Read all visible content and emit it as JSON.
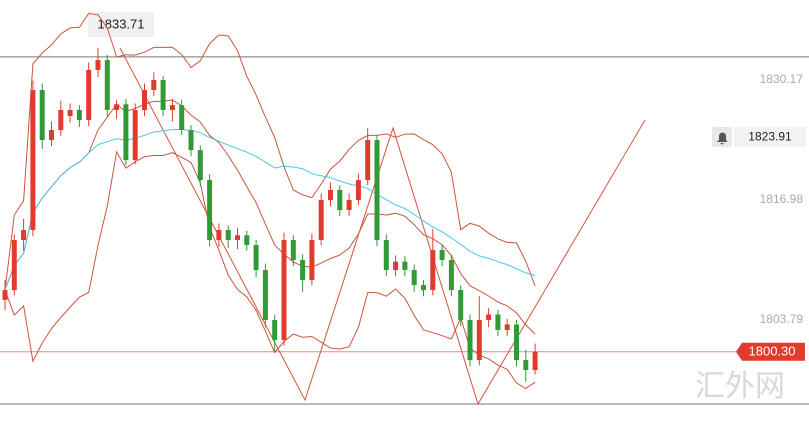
{
  "chart_data": {
    "type": "candlestick",
    "ohlc": [
      [
        1806.0,
        1808.2,
        1804.9,
        1807.08
      ],
      [
        1807.08,
        1813.2,
        1806.5,
        1812.58
      ],
      [
        1812.58,
        1814.9,
        1811.4,
        1813.68
      ],
      [
        1813.68,
        1830.1,
        1813.0,
        1829.07
      ],
      [
        1829.07,
        1829.8,
        1822.6,
        1823.57
      ],
      [
        1823.57,
        1825.6,
        1822.9,
        1824.67
      ],
      [
        1824.67,
        1827.9,
        1824.0,
        1826.87
      ],
      [
        1826.2,
        1827.6,
        1825.5,
        1826.87
      ],
      [
        1826.87,
        1827.4,
        1825.0,
        1825.77
      ],
      [
        1825.77,
        1832.1,
        1825.1,
        1831.27
      ],
      [
        1831.27,
        1833.71,
        1830.5,
        1832.36
      ],
      [
        1832.36,
        1832.9,
        1826.1,
        1826.87
      ],
      [
        1826.87,
        1828.0,
        1825.9,
        1827.5
      ],
      [
        1827.5,
        1828.1,
        1820.8,
        1821.37
      ],
      [
        1821.37,
        1827.6,
        1820.9,
        1826.87
      ],
      [
        1826.87,
        1829.8,
        1826.2,
        1829.07
      ],
      [
        1829.07,
        1831.0,
        1828.4,
        1830.17
      ],
      [
        1830.17,
        1830.6,
        1826.2,
        1826.87
      ],
      [
        1826.87,
        1828.1,
        1825.6,
        1827.4
      ],
      [
        1827.4,
        1828.0,
        1824.1,
        1824.67
      ],
      [
        1824.67,
        1825.2,
        1821.8,
        1822.47
      ],
      [
        1822.47,
        1823.0,
        1818.5,
        1819.17
      ],
      [
        1819.17,
        1819.8,
        1811.9,
        1812.58
      ],
      [
        1812.58,
        1814.4,
        1811.8,
        1813.68
      ],
      [
        1813.68,
        1814.2,
        1811.7,
        1812.58
      ],
      [
        1812.58,
        1813.9,
        1811.6,
        1813.1
      ],
      [
        1813.1,
        1813.6,
        1811.4,
        1812.03
      ],
      [
        1812.03,
        1812.6,
        1808.5,
        1809.28
      ],
      [
        1809.28,
        1810.0,
        1803.0,
        1803.79
      ],
      [
        1803.79,
        1804.4,
        1800.3,
        1801.59
      ],
      [
        1801.59,
        1813.4,
        1801.0,
        1812.58
      ],
      [
        1812.58,
        1813.1,
        1809.7,
        1810.38
      ],
      [
        1810.38,
        1811.0,
        1806.9,
        1808.18
      ],
      [
        1808.18,
        1813.3,
        1807.6,
        1812.58
      ],
      [
        1812.58,
        1817.7,
        1812.0,
        1816.98
      ],
      [
        1816.98,
        1818.9,
        1816.3,
        1818.08
      ],
      [
        1818.08,
        1818.6,
        1815.2,
        1815.88
      ],
      [
        1815.88,
        1817.7,
        1815.2,
        1816.98
      ],
      [
        1816.98,
        1819.9,
        1816.4,
        1819.17
      ],
      [
        1819.17,
        1824.9,
        1818.6,
        1823.57
      ],
      [
        1823.57,
        1824.1,
        1811.9,
        1812.58
      ],
      [
        1812.58,
        1813.2,
        1808.6,
        1809.28
      ],
      [
        1809.28,
        1810.9,
        1808.6,
        1810.2
      ],
      [
        1810.2,
        1810.8,
        1808.6,
        1809.28
      ],
      [
        1809.28,
        1809.9,
        1806.9,
        1807.63
      ],
      [
        1807.63,
        1808.2,
        1806.4,
        1807.08
      ],
      [
        1807.08,
        1813.8,
        1806.5,
        1811.48
      ],
      [
        1811.48,
        1812.1,
        1809.7,
        1810.38
      ],
      [
        1810.38,
        1811.0,
        1806.4,
        1807.08
      ],
      [
        1807.08,
        1807.6,
        1803.1,
        1803.79
      ],
      [
        1803.79,
        1804.4,
        1798.7,
        1799.39
      ],
      [
        1799.39,
        1806.4,
        1798.8,
        1803.79
      ],
      [
        1803.79,
        1805.1,
        1803.0,
        1804.4
      ],
      [
        1804.4,
        1804.9,
        1802.0,
        1802.69
      ],
      [
        1802.69,
        1803.9,
        1802.0,
        1803.3
      ],
      [
        1803.3,
        1803.8,
        1798.7,
        1799.39
      ],
      [
        1799.39,
        1800.5,
        1797.0,
        1798.29
      ],
      [
        1798.29,
        1801.2,
        1797.8,
        1800.3
      ]
    ],
    "up_color": "#e23b2e",
    "down_color": "#2f9a36",
    "ylim": [
      1792.69,
      1838.96
    ],
    "yticks": [
      1830.17,
      1816.98,
      1803.79
    ],
    "levels": [
      1832.71,
      1794.56
    ],
    "current_price": "1800.30",
    "alert_price": "1823.91",
    "high_label": "1833.71",
    "watermark": "汇外网"
  }
}
